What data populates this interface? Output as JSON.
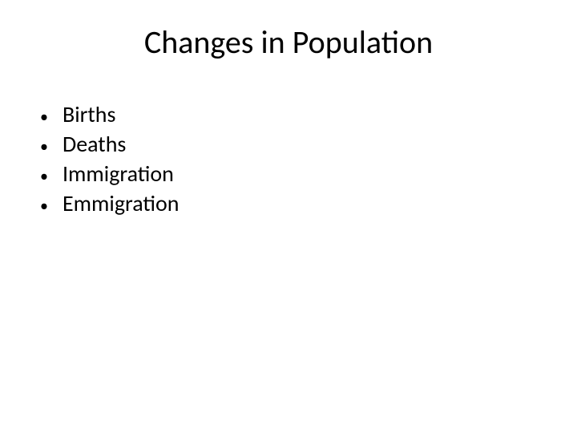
{
  "slide": {
    "title": "Changes in Population",
    "title_fontsize": 40,
    "title_color": "#000000",
    "background_color": "#ffffff",
    "bullets": [
      {
        "text": "Births"
      },
      {
        "text": "Deaths"
      },
      {
        "text": "Immigration"
      },
      {
        "text": "Emmigration"
      }
    ],
    "bullet_fontsize": 28,
    "bullet_color": "#000000",
    "bullet_marker": "•"
  }
}
